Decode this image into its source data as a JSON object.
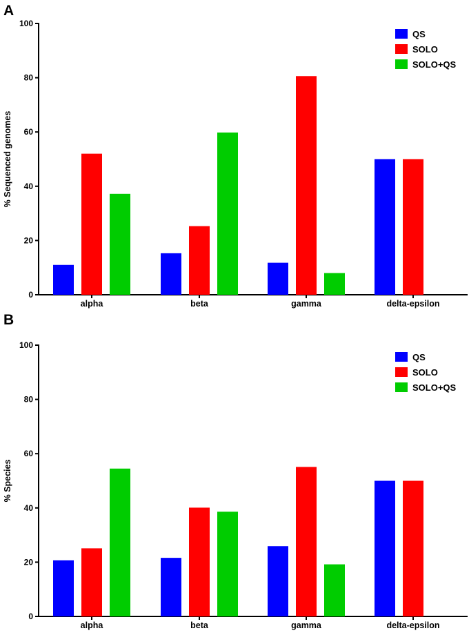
{
  "chart_data": [
    {
      "panel": "A",
      "type": "bar",
      "title": "",
      "xlabel": "",
      "ylabel": "% Sequenced genomes",
      "ylim": [
        0,
        100
      ],
      "yticks": [
        0,
        20,
        40,
        60,
        80,
        100
      ],
      "categories": [
        "alpha",
        "beta",
        "gamma",
        "delta-epsilon"
      ],
      "legend_position": "top-right",
      "series": [
        {
          "name": "QS",
          "color": "#0000ff",
          "values": [
            11,
            15.3,
            11.8,
            50
          ]
        },
        {
          "name": "SOLO",
          "color": "#ff0000",
          "values": [
            52,
            25.3,
            80.6,
            50
          ]
        },
        {
          "name": "SOLO+QS",
          "color": "#00cc00",
          "values": [
            37.2,
            59.8,
            8,
            0
          ]
        }
      ]
    },
    {
      "panel": "B",
      "type": "bar",
      "title": "",
      "xlabel": "",
      "ylabel": "% Species",
      "ylim": [
        0,
        100
      ],
      "yticks": [
        0,
        20,
        40,
        60,
        80,
        100
      ],
      "categories": [
        "alpha",
        "beta",
        "gamma",
        "delta-epsilon"
      ],
      "legend_position": "top-right",
      "series": [
        {
          "name": "QS",
          "color": "#0000ff",
          "values": [
            20.7,
            21.6,
            25.9,
            50
          ]
        },
        {
          "name": "SOLO",
          "color": "#ff0000",
          "values": [
            25.1,
            40.1,
            55.1,
            50
          ]
        },
        {
          "name": "SOLO+QS",
          "color": "#00cc00",
          "values": [
            54.5,
            38.6,
            19.2,
            0
          ]
        }
      ]
    }
  ]
}
